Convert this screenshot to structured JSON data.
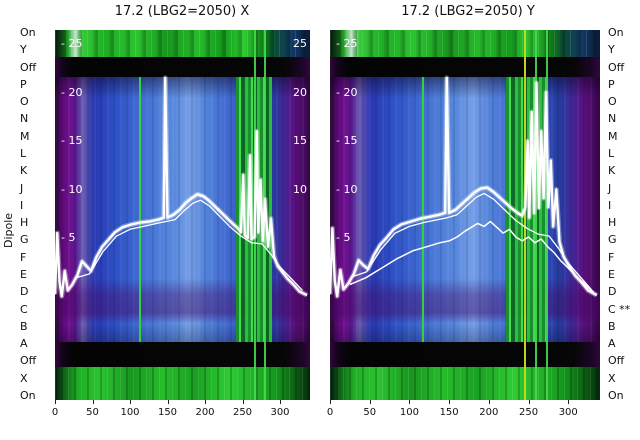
{
  "figure": {
    "titles": {
      "left": "17.2 (LBG2=2050) X",
      "right": "17.2 (LBG2=2050) Y"
    },
    "y_axis_label": "Dipole",
    "row_labels_left": [
      "On",
      "Y",
      "Off",
      "P",
      "O",
      "N",
      "M",
      "L",
      "K",
      "J",
      "I",
      "H",
      "G",
      "F",
      "E",
      "D",
      "C",
      "B",
      "A",
      "Off",
      "X",
      "On"
    ],
    "row_labels_right": [
      "On",
      "Y",
      "Off",
      "P",
      "O",
      "N",
      "M",
      "L",
      "K",
      "J",
      "I",
      "H",
      "G",
      "F",
      "E",
      "D",
      "C **",
      "B",
      "A",
      "Off",
      "X",
      "On"
    ],
    "colors": {
      "background": "#ffffff",
      "text": "#111111",
      "trace": "#ffffff",
      "heat_green": "#2cc431",
      "heat_blue": "#5585dc",
      "heat_purple": "#6e1090",
      "heat_black": "#060606",
      "yellow_line": "#c8dc1e"
    }
  },
  "chart_data": [
    {
      "type": "heatmap",
      "panel": "X",
      "title": "17.2 (LBG2=2050) X",
      "x_range": [
        0,
        340
      ],
      "x_ticks": [
        0,
        50,
        100,
        150,
        200,
        250,
        300
      ],
      "value_ticks": [
        25,
        20,
        15,
        10,
        5
      ],
      "inner_tick_labels_left": [
        "- 25",
        "- 20",
        "- 15",
        "- 10",
        "- 5"
      ],
      "inner_tick_labels_right": [
        "25",
        "20",
        "15",
        "10"
      ],
      "row_bands_top_to_bottom": [
        "green-on",
        "black-off",
        "spectrogram purple-blue-green",
        "black-off",
        "green-on"
      ],
      "overlay_series": [
        {
          "name": "trace-main",
          "width": 2.4,
          "points": [
            [
              0,
              -0.8
            ],
            [
              3,
              5.5
            ],
            [
              6,
              0.5
            ],
            [
              9,
              -1
            ],
            [
              13,
              1.6
            ],
            [
              17,
              -0.4
            ],
            [
              23,
              0.2
            ],
            [
              30,
              1.2
            ],
            [
              36,
              2.6
            ],
            [
              42,
              2.1
            ],
            [
              48,
              1.6
            ],
            [
              55,
              3
            ],
            [
              63,
              4.1
            ],
            [
              71,
              4.8
            ],
            [
              80,
              5.6
            ],
            [
              90,
              6.1
            ],
            [
              102,
              6.4
            ],
            [
              114,
              6.6
            ],
            [
              126,
              6.7
            ],
            [
              138,
              6.9
            ],
            [
              145,
              7.1
            ],
            [
              147,
              21.5
            ],
            [
              150,
              7.1
            ],
            [
              158,
              7.4
            ],
            [
              166,
              7.9
            ],
            [
              174,
              8.6
            ],
            [
              182,
              9.1
            ],
            [
              190,
              9.5
            ],
            [
              198,
              9.3
            ],
            [
              206,
              8.8
            ],
            [
              214,
              8.2
            ],
            [
              222,
              7.6
            ],
            [
              230,
              7
            ],
            [
              238,
              6.4
            ],
            [
              244,
              6
            ],
            [
              248,
              5.6
            ],
            [
              251,
              11.5
            ],
            [
              253,
              5.3
            ],
            [
              257,
              5
            ],
            [
              260,
              13.5
            ],
            [
              262,
              4.9
            ],
            [
              266,
              5.1
            ],
            [
              269,
              16
            ],
            [
              271,
              5.6
            ],
            [
              274,
              11
            ],
            [
              277,
              4.7
            ],
            [
              280,
              9
            ],
            [
              284,
              4.1
            ],
            [
              288,
              7
            ],
            [
              292,
              3.1
            ],
            [
              297,
              2.1
            ],
            [
              303,
              1.5
            ],
            [
              310,
              0.8
            ],
            [
              318,
              0.2
            ],
            [
              326,
              -0.5
            ],
            [
              336,
              -0.9
            ]
          ]
        },
        {
          "name": "trace-secondary",
          "width": 1.3,
          "points": [
            [
              28,
              0.9
            ],
            [
              46,
              1.3
            ],
            [
              64,
              3.6
            ],
            [
              82,
              5.2
            ],
            [
              100,
              5.9
            ],
            [
              118,
              6.2
            ],
            [
              136,
              6.5
            ],
            [
              148,
              6.7
            ],
            [
              160,
              6.9
            ],
            [
              172,
              7.8
            ],
            [
              184,
              8.6
            ],
            [
              194,
              8.9
            ],
            [
              206,
              8.3
            ],
            [
              220,
              7.2
            ],
            [
              234,
              6.1
            ],
            [
              248,
              5.2
            ],
            [
              262,
              4.5
            ],
            [
              276,
              4.4
            ],
            [
              288,
              3.3
            ],
            [
              300,
              2
            ],
            [
              314,
              0.9
            ],
            [
              330,
              -0.4
            ]
          ]
        }
      ]
    },
    {
      "type": "heatmap",
      "panel": "Y",
      "title": "17.2 (LBG2=2050) Y",
      "x_range": [
        0,
        340
      ],
      "x_ticks": [
        0,
        50,
        100,
        150,
        200,
        250,
        300
      ],
      "value_ticks": [
        25,
        20,
        15,
        10,
        5
      ],
      "inner_tick_labels_left": [
        "- 25",
        "- 20",
        "- 15",
        "- 10",
        "- 5"
      ],
      "inner_tick_labels_right": [],
      "row_bands_top_to_bottom": [
        "green-on",
        "black-off",
        "spectrogram purple-blue-green",
        "black-off",
        "green-on"
      ],
      "overlay_series": [
        {
          "name": "trace-main",
          "width": 2.4,
          "points": [
            [
              0,
              -0.8
            ],
            [
              3,
              6
            ],
            [
              6,
              0.6
            ],
            [
              9,
              -1
            ],
            [
              13,
              1.7
            ],
            [
              17,
              -0.3
            ],
            [
              23,
              0.3
            ],
            [
              30,
              1.3
            ],
            [
              36,
              2.7
            ],
            [
              42,
              2.2
            ],
            [
              48,
              1.8
            ],
            [
              55,
              3.2
            ],
            [
              63,
              4.3
            ],
            [
              71,
              5
            ],
            [
              80,
              5.9
            ],
            [
              90,
              6.4
            ],
            [
              102,
              6.7
            ],
            [
              114,
              7
            ],
            [
              126,
              7.2
            ],
            [
              138,
              7.4
            ],
            [
              145,
              7.6
            ],
            [
              147,
              21.5
            ],
            [
              150,
              7.6
            ],
            [
              158,
              7.9
            ],
            [
              166,
              8.5
            ],
            [
              174,
              9.1
            ],
            [
              182,
              9.7
            ],
            [
              190,
              10.1
            ],
            [
              198,
              10.2
            ],
            [
              205,
              9.8
            ],
            [
              212,
              9.3
            ],
            [
              220,
              8.7
            ],
            [
              228,
              8.1
            ],
            [
              236,
              7.6
            ],
            [
              242,
              7.3
            ],
            [
              246,
              8.2
            ],
            [
              249,
              15
            ],
            [
              251,
              7.1
            ],
            [
              254,
              18
            ],
            [
              257,
              7.6
            ],
            [
              260,
              21
            ],
            [
              263,
              8.1
            ],
            [
              266,
              16
            ],
            [
              269,
              9.1
            ],
            [
              272,
              20
            ],
            [
              275,
              8.2
            ],
            [
              278,
              13
            ],
            [
              281,
              6.2
            ],
            [
              285,
              10
            ],
            [
              289,
              4.6
            ],
            [
              294,
              3.1
            ],
            [
              301,
              2.1
            ],
            [
              309,
              1.1
            ],
            [
              317,
              0.4
            ],
            [
              325,
              -0.4
            ],
            [
              336,
              -0.9
            ]
          ]
        },
        {
          "name": "trace-secondary",
          "width": 1.3,
          "points": [
            [
              28,
              1
            ],
            [
              46,
              1.5
            ],
            [
              64,
              3.8
            ],
            [
              82,
              5.5
            ],
            [
              100,
              6.2
            ],
            [
              118,
              6.6
            ],
            [
              136,
              6.9
            ],
            [
              148,
              7.1
            ],
            [
              160,
              7.4
            ],
            [
              172,
              8.3
            ],
            [
              184,
              9.2
            ],
            [
              194,
              9.6
            ],
            [
              206,
              9
            ],
            [
              220,
              7.9
            ],
            [
              234,
              6.8
            ],
            [
              248,
              6
            ],
            [
              262,
              5.4
            ],
            [
              276,
              5.2
            ],
            [
              288,
              3.9
            ],
            [
              300,
              2.4
            ],
            [
              314,
              1.1
            ],
            [
              330,
              -0.4
            ]
          ]
        },
        {
          "name": "trace-lower",
          "width": 1.5,
          "points": [
            [
              25,
              0.2
            ],
            [
              45,
              0.9
            ],
            [
              65,
              1.9
            ],
            [
              85,
              2.9
            ],
            [
              105,
              3.7
            ],
            [
              122,
              4.1
            ],
            [
              138,
              4.5
            ],
            [
              150,
              4.7
            ],
            [
              160,
              5.1
            ],
            [
              170,
              5.7
            ],
            [
              178,
              6.1
            ],
            [
              186,
              6.5
            ],
            [
              194,
              6.2
            ],
            [
              202,
              6.7
            ],
            [
              210,
              6.1
            ],
            [
              218,
              5.5
            ],
            [
              226,
              5.9
            ],
            [
              234,
              5.1
            ],
            [
              242,
              4.7
            ],
            [
              250,
              5.1
            ],
            [
              258,
              4.5
            ],
            [
              266,
              4.9
            ],
            [
              274,
              4.1
            ],
            [
              282,
              3.5
            ],
            [
              290,
              2.7
            ],
            [
              300,
              1.9
            ],
            [
              310,
              1.1
            ],
            [
              320,
              0.3
            ],
            [
              332,
              -0.6
            ]
          ]
        }
      ]
    }
  ]
}
